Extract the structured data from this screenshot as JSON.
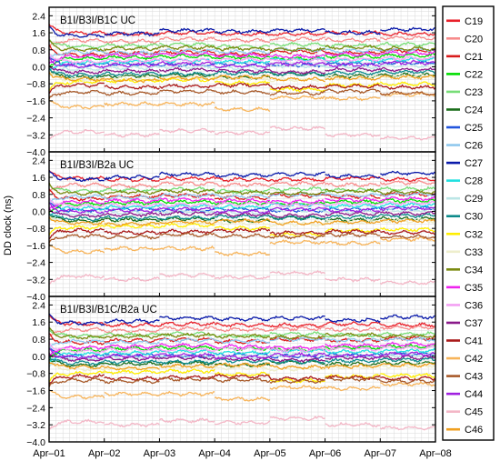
{
  "chart_data": {
    "type": "line",
    "ylabel": "DD clock (ns)",
    "x_ticks": [
      "Apr–01",
      "Apr–02",
      "Apr–03",
      "Apr–04",
      "Apr–05",
      "Apr–06",
      "Apr–07",
      "Apr–08"
    ],
    "xlim": [
      "2023-04-01",
      "2023-04-08"
    ],
    "y_ticks": [
      "2.4",
      "1.6",
      "0.8",
      "0.0",
      "−0.8",
      "−1.6",
      "−2.4",
      "−3.2",
      "−4.0"
    ],
    "ylim": [
      -4.0,
      2.8
    ],
    "grid": true,
    "legend_placement": "right",
    "panels": [
      {
        "title": "B1I/B3I/B1C UC"
      },
      {
        "title": "B1I/B3I/B2a UC"
      },
      {
        "title": "B1I/B3I/B1C/B2a UC"
      }
    ],
    "series": [
      {
        "name": "C19",
        "color": "#e8202a",
        "day_levels": [
          1.55,
          1.5,
          1.55,
          1.5,
          1.5,
          1.55,
          1.5
        ]
      },
      {
        "name": "C20",
        "color": "#f78c8c",
        "day_levels": [
          1.25,
          1.2,
          1.3,
          1.25,
          1.3,
          1.25,
          1.35
        ]
      },
      {
        "name": "C21",
        "color": "#d81b1b",
        "day_levels": [
          0.6,
          0.7,
          0.75,
          0.65,
          0.75,
          0.7,
          0.8
        ]
      },
      {
        "name": "C22",
        "color": "#00dd00",
        "day_levels": [
          0.35,
          0.4,
          0.45,
          0.4,
          0.35,
          0.45,
          0.5
        ]
      },
      {
        "name": "C23",
        "color": "#77dd77",
        "day_levels": [
          0.95,
          1.0,
          1.05,
          0.95,
          1.05,
          1.0,
          1.05
        ]
      },
      {
        "name": "C24",
        "color": "#1a6d1a",
        "day_levels": [
          -0.45,
          -0.4,
          -0.35,
          -0.45,
          -0.3,
          -0.4,
          -0.35
        ]
      },
      {
        "name": "C25",
        "color": "#2255dd",
        "day_levels": [
          0.05,
          0.1,
          0.05,
          0.1,
          0.05,
          0.1,
          0.15
        ]
      },
      {
        "name": "C26",
        "color": "#8fc8ee",
        "day_levels": [
          0.7,
          0.65,
          0.75,
          0.7,
          0.8,
          0.75,
          0.8
        ]
      },
      {
        "name": "C27",
        "color": "#0a1aaa",
        "day_levels": [
          1.5,
          1.6,
          1.75,
          1.7,
          1.75,
          1.65,
          1.8
        ]
      },
      {
        "name": "C28",
        "color": "#22e0e0",
        "day_levels": [
          0.15,
          0.2,
          0.25,
          0.2,
          0.3,
          0.25,
          0.3
        ]
      },
      {
        "name": "C29",
        "color": "#bbe6e6",
        "day_levels": [
          -0.1,
          -0.05,
          0.0,
          -0.05,
          0.05,
          0.0,
          0.05
        ]
      },
      {
        "name": "C30",
        "color": "#0d8a8a",
        "day_levels": [
          -0.35,
          -0.3,
          -0.3,
          -0.25,
          -0.3,
          -0.25,
          -0.2
        ]
      },
      {
        "name": "C32",
        "color": "#ffee00",
        "day_levels": [
          -0.75,
          -0.7,
          -0.65,
          -0.8,
          -1.1,
          -0.9,
          -0.85
        ]
      },
      {
        "name": "C33",
        "color": "#eeeecc",
        "day_levels": [
          -0.6,
          -0.55,
          -0.5,
          -0.55,
          -0.6,
          -0.5,
          -0.45
        ]
      },
      {
        "name": "C34",
        "color": "#7a8a10",
        "day_levels": [
          0.85,
          0.9,
          0.95,
          0.9,
          0.85,
          0.95,
          0.9
        ]
      },
      {
        "name": "C35",
        "color": "#ee22ee",
        "day_levels": [
          0.45,
          0.5,
          0.55,
          0.5,
          0.45,
          0.55,
          0.6
        ]
      },
      {
        "name": "C36",
        "color": "#f3a0f3",
        "day_levels": [
          0.25,
          0.3,
          0.3,
          0.35,
          0.3,
          0.35,
          0.4
        ]
      },
      {
        "name": "C37",
        "color": "#8a1a8a",
        "day_levels": [
          -0.2,
          -0.15,
          -0.1,
          -0.15,
          -0.2,
          -0.1,
          -0.1
        ]
      },
      {
        "name": "C41",
        "color": "#aa1a1a",
        "day_levels": [
          -0.9,
          -1.0,
          -0.95,
          -0.9,
          -1.0,
          -0.95,
          -1.0
        ]
      },
      {
        "name": "C42",
        "color": "#f7b45a",
        "day_levels": [
          -1.9,
          -1.75,
          -1.75,
          -2.0,
          -1.45,
          -1.5,
          -1.3
        ]
      },
      {
        "name": "C43",
        "color": "#a85a2a",
        "day_levels": [
          -1.15,
          -1.2,
          -1.1,
          -1.15,
          -1.2,
          -1.1,
          -1.2
        ]
      },
      {
        "name": "C44",
        "color": "#a020e0",
        "day_levels": [
          0.0,
          0.05,
          0.1,
          0.0,
          0.1,
          0.05,
          0.15
        ]
      },
      {
        "name": "C45",
        "color": "#f3b6c6",
        "day_levels": [
          -3.05,
          -3.2,
          -3.0,
          -3.1,
          -2.9,
          -3.2,
          -3.35
        ]
      },
      {
        "name": "C46",
        "color": "#f0a020",
        "day_levels": [
          -0.55,
          -0.6,
          -0.5,
          -0.45,
          -0.55,
          -0.5,
          -0.45
        ]
      }
    ]
  }
}
